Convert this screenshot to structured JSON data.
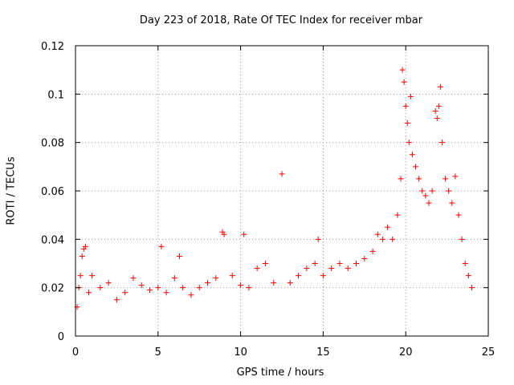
{
  "chart_data": {
    "type": "scatter",
    "title": "Day 223 of 2018, Rate Of TEC Index for receiver mbar",
    "xlabel": "GPS time / hours",
    "ylabel": "ROTI / TECUs",
    "xlim": [
      0,
      25
    ],
    "ylim": [
      0,
      0.12
    ],
    "x_ticks": [
      "0",
      "5",
      "10",
      "15",
      "20",
      "25"
    ],
    "y_ticks": [
      "0",
      "0.02",
      "0.04",
      "0.06",
      "0.08",
      "0.1",
      "0.12"
    ],
    "grid": true,
    "marker": "+",
    "color": "#ff0000",
    "series": [
      {
        "name": "",
        "points": [
          [
            0.1,
            0.012
          ],
          [
            0.2,
            0.02
          ],
          [
            0.3,
            0.025
          ],
          [
            0.4,
            0.033
          ],
          [
            0.5,
            0.036
          ],
          [
            0.6,
            0.037
          ],
          [
            0.8,
            0.018
          ],
          [
            1.0,
            0.025
          ],
          [
            1.5,
            0.02
          ],
          [
            2.0,
            0.022
          ],
          [
            2.5,
            0.015
          ],
          [
            3.0,
            0.018
          ],
          [
            3.5,
            0.024
          ],
          [
            4.0,
            0.021
          ],
          [
            4.5,
            0.019
          ],
          [
            5.0,
            0.02
          ],
          [
            5.2,
            0.037
          ],
          [
            5.5,
            0.018
          ],
          [
            6.0,
            0.024
          ],
          [
            6.3,
            0.033
          ],
          [
            6.5,
            0.02
          ],
          [
            7.0,
            0.017
          ],
          [
            7.5,
            0.02
          ],
          [
            8.0,
            0.022
          ],
          [
            8.5,
            0.024
          ],
          [
            8.9,
            0.043
          ],
          [
            9.0,
            0.042
          ],
          [
            9.5,
            0.025
          ],
          [
            10.0,
            0.021
          ],
          [
            10.2,
            0.042
          ],
          [
            10.5,
            0.02
          ],
          [
            11.0,
            0.028
          ],
          [
            11.5,
            0.03
          ],
          [
            12.0,
            0.022
          ],
          [
            12.5,
            0.067
          ],
          [
            13.0,
            0.022
          ],
          [
            13.5,
            0.025
          ],
          [
            14.0,
            0.028
          ],
          [
            14.5,
            0.03
          ],
          [
            14.7,
            0.04
          ],
          [
            15.0,
            0.025
          ],
          [
            15.5,
            0.028
          ],
          [
            16.0,
            0.03
          ],
          [
            16.5,
            0.028
          ],
          [
            17.0,
            0.03
          ],
          [
            17.5,
            0.032
          ],
          [
            18.0,
            0.035
          ],
          [
            18.3,
            0.042
          ],
          [
            18.6,
            0.04
          ],
          [
            18.9,
            0.045
          ],
          [
            19.2,
            0.04
          ],
          [
            19.5,
            0.05
          ],
          [
            19.7,
            0.065
          ],
          [
            19.8,
            0.11
          ],
          [
            19.9,
            0.105
          ],
          [
            20.0,
            0.095
          ],
          [
            20.1,
            0.088
          ],
          [
            20.2,
            0.08
          ],
          [
            20.3,
            0.099
          ],
          [
            20.4,
            0.075
          ],
          [
            20.6,
            0.07
          ],
          [
            20.8,
            0.065
          ],
          [
            21.0,
            0.06
          ],
          [
            21.2,
            0.058
          ],
          [
            21.4,
            0.055
          ],
          [
            21.6,
            0.06
          ],
          [
            21.8,
            0.093
          ],
          [
            21.9,
            0.09
          ],
          [
            22.0,
            0.095
          ],
          [
            22.1,
            0.103
          ],
          [
            22.2,
            0.08
          ],
          [
            22.4,
            0.065
          ],
          [
            22.6,
            0.06
          ],
          [
            22.8,
            0.055
          ],
          [
            23.0,
            0.066
          ],
          [
            23.2,
            0.05
          ],
          [
            23.4,
            0.04
          ],
          [
            23.6,
            0.03
          ],
          [
            23.8,
            0.025
          ],
          [
            24.0,
            0.02
          ]
        ]
      }
    ]
  }
}
